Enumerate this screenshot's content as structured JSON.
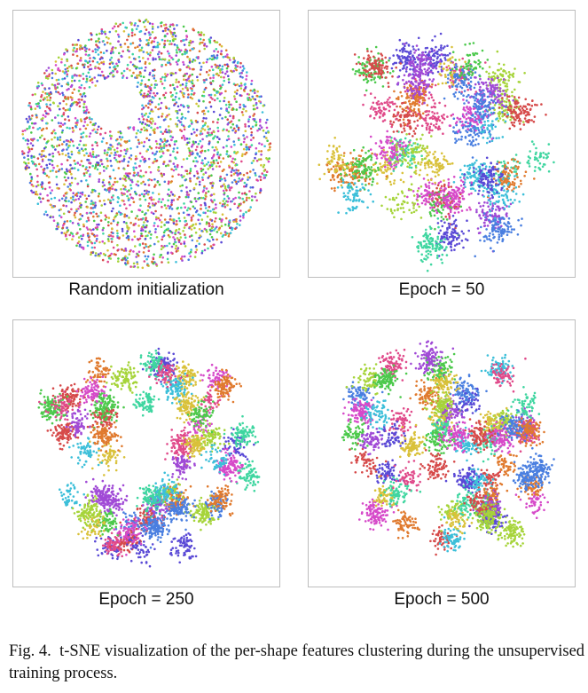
{
  "panels": [
    {
      "caption": "Random initialization"
    },
    {
      "caption": "Epoch = 50"
    },
    {
      "caption": "Epoch = 250"
    },
    {
      "caption": "Epoch = 500"
    }
  ],
  "figure_caption": {
    "label": "Fig. 4.",
    "text": "t-SNE visualization of the per-shape features clustering during the unsupervised training process."
  },
  "colors": [
    "#d64a4a",
    "#e07a2e",
    "#d9c13a",
    "#a6d43a",
    "#4cc94c",
    "#3fd6a0",
    "#3cbfd9",
    "#4a7fe0",
    "#5a4ad6",
    "#a04ad6",
    "#d64ac9",
    "#e04a8a"
  ]
}
